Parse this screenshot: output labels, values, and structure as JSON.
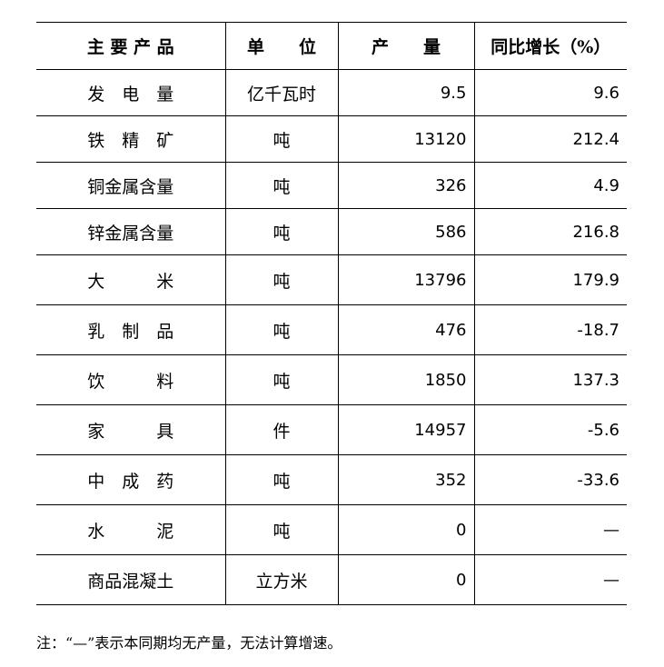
{
  "headers": [
    "主 要 产 品",
    "单　　位",
    "产　　量",
    "同比增长（%）"
  ],
  "rows": [
    {
      "product": "发　电　量",
      "unit": "亿千瓦时",
      "output": "9.5",
      "growth": "9.6"
    },
    {
      "product": "铁　精　矿",
      "unit": "吨",
      "output": "13120",
      "growth": "212.4"
    },
    {
      "product": "铜金属含量",
      "unit": "吨",
      "output": "326",
      "growth": "4.9"
    },
    {
      "product": "锌金属含量",
      "unit": "吨",
      "output": "586",
      "growth": "216.8"
    },
    {
      "product": "大　　　米",
      "unit": "吨",
      "output": "13796",
      "growth": "179.9"
    },
    {
      "product": "乳　制　品",
      "unit": "吨",
      "output": "476",
      "growth": "-18.7"
    },
    {
      "product": "饮　　　料",
      "unit": "吨",
      "output": "1850",
      "growth": "137.3"
    },
    {
      "product": "家　　　具",
      "unit": "件",
      "output": "14957",
      "growth": "-5.6"
    },
    {
      "product": "中　成　药",
      "unit": "吨",
      "output": "352",
      "growth": "-33.6"
    },
    {
      "product": "水　　　泥",
      "unit": "吨",
      "output": "0",
      "growth": "—"
    },
    {
      "product": "商品混凝土",
      "unit": "立方米",
      "output": "0",
      "growth": "—"
    }
  ],
  "note": "注：“—”表示本同期均无产量，无法计算增速。"
}
